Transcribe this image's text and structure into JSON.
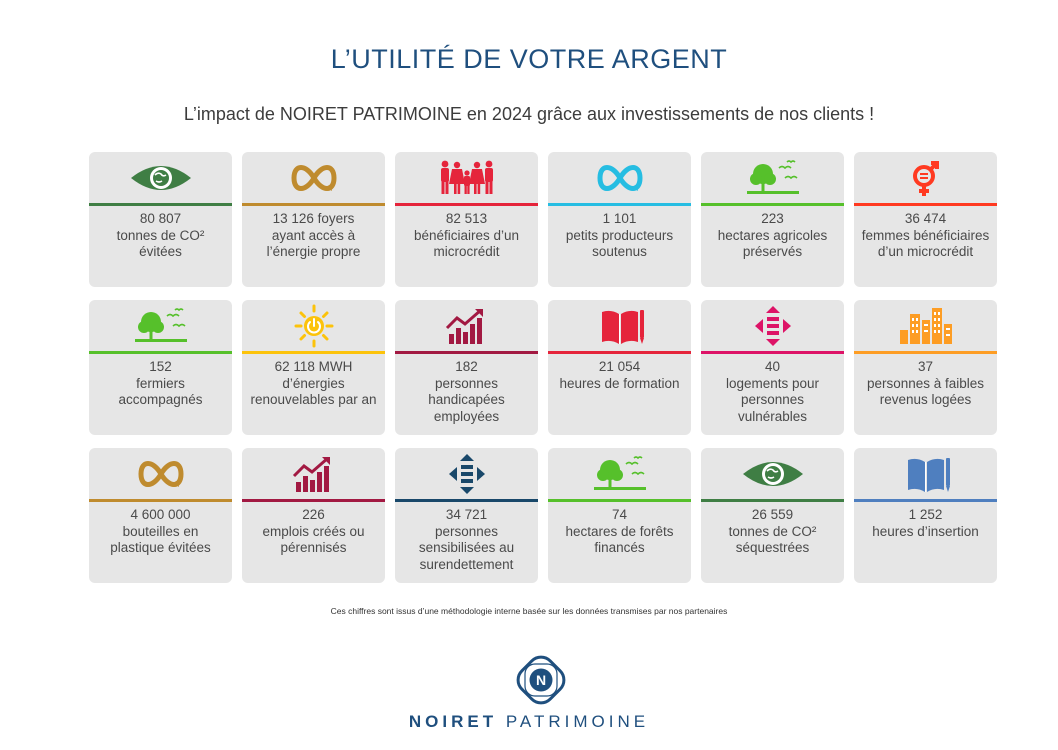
{
  "header": {
    "title": "L’UTILITÉ DE VOTRE ARGENT",
    "subtitle": "L’impact de NOIRET PATRIMOINE en 2024 grâce aux investissements de nos clients !"
  },
  "cards": [
    {
      "value": "80 807",
      "label": "tonnes de CO² évitées",
      "icon": "eye-globe-icon",
      "color": "#3f7e44"
    },
    {
      "value": "13 126 foyers",
      "label": "ayant accès à l’énergie propre",
      "icon": "infinity-arrow-icon",
      "color": "#bf8b2e"
    },
    {
      "value": "82 513",
      "label": "bénéficiaires d’un microcrédit",
      "icon": "family-icon",
      "color": "#e5243b"
    },
    {
      "value": "1 101",
      "label": "petits producteurs soutenus",
      "icon": "infinity-arrow-icon",
      "color": "#26bde2"
    },
    {
      "value": "223",
      "label": "hectares agricoles préservés",
      "icon": "tree-birds-icon",
      "color": "#56c02b"
    },
    {
      "value": "36 474",
      "label": "femmes bénéficiaires d’un microcrédit",
      "icon": "gender-symbol-icon",
      "color": "#ff3a21"
    },
    {
      "value": "152",
      "label": "fermiers accompagnés",
      "icon": "tree-birds-icon",
      "color": "#56c02b"
    },
    {
      "value": "62 118 MWH",
      "label": "d’énergies renouvelables par an",
      "icon": "sun-power-icon",
      "color": "#fcc30b"
    },
    {
      "value": "182",
      "label": "personnes handicapées employées",
      "icon": "growth-chart-icon",
      "color": "#a21942"
    },
    {
      "value": "21 054",
      "label": "heures de formation",
      "icon": "book-pencil-icon",
      "color": "#e5243b"
    },
    {
      "value": "40",
      "label": "logements pour personnes vulnérables",
      "icon": "equality-arrows-icon",
      "color": "#dd1367"
    },
    {
      "value": "37",
      "label": "personnes à faibles revenus logées",
      "icon": "city-buildings-icon",
      "color": "#fd9d24"
    },
    {
      "value": "4 600 000",
      "label": "bouteilles en plastique évitées",
      "icon": "infinity-arrow-icon",
      "color": "#bf8b2e"
    },
    {
      "value": "226",
      "label": "emplois créés ou pérennisés",
      "icon": "growth-chart-icon",
      "color": "#a21942"
    },
    {
      "value": "34 721",
      "label": "personnes sensibilisées au surendettement",
      "icon": "equality-arrows-icon",
      "color": "#19486a"
    },
    {
      "value": "74",
      "label": "hectares de forêts financés",
      "icon": "tree-birds-icon",
      "color": "#56c02b"
    },
    {
      "value": "26 559",
      "label": "tonnes de CO² séquestrées",
      "icon": "eye-globe-icon",
      "color": "#3f7e44"
    },
    {
      "value": "1 252",
      "label": "heures d’insertion",
      "icon": "book-pencil-icon",
      "color": "#4f7fbf"
    }
  ],
  "footnote": "Ces chiffres sont issus d’une méthodologie interne basée sur les données transmises par nos partenaires",
  "brand": {
    "logo_letter": "N",
    "name_bold": "NOIRET",
    "name_light": "PATRIMOINE",
    "color": "#1f4f7e"
  }
}
